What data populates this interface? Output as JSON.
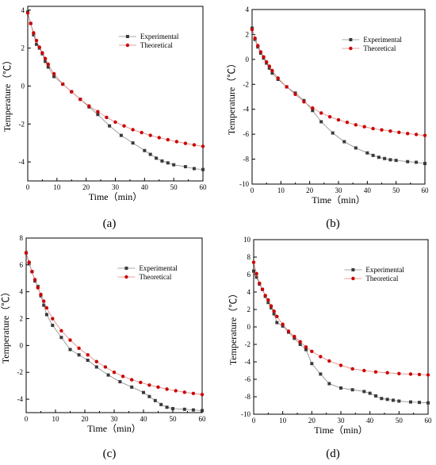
{
  "figure": {
    "legend_experimental": "Experimental",
    "legend_theoretical": "Theoretical",
    "colors": {
      "experimental": "#3a3a3a",
      "theoretical": "#cc0000",
      "axes": "#000000"
    }
  },
  "chart_data": [
    {
      "panel": "(a)",
      "type": "line",
      "xlabel": "Time（min）",
      "ylabel": "Temperature（℃）",
      "xlim": [
        0,
        60
      ],
      "ylim": [
        -5,
        4.2
      ],
      "xticks": [
        0,
        10,
        20,
        30,
        40,
        50,
        60
      ],
      "yticks": [
        -4,
        -2,
        0,
        2,
        4
      ],
      "legend_position": "top-right",
      "series": [
        {
          "name": "Experimental",
          "x": [
            0,
            1,
            2,
            3,
            4,
            5,
            6,
            7,
            9,
            12,
            15,
            18,
            21,
            24,
            28,
            32,
            36,
            40,
            42,
            44,
            46,
            48,
            50,
            54,
            57,
            60
          ],
          "y": [
            3.9,
            3.3,
            2.7,
            2.2,
            2.0,
            1.7,
            1.3,
            1.0,
            0.5,
            0.1,
            -0.3,
            -0.7,
            -1.1,
            -1.5,
            -2.1,
            -2.6,
            -3.0,
            -3.4,
            -3.6,
            -3.8,
            -3.95,
            -4.05,
            -4.15,
            -4.25,
            -4.35,
            -4.4
          ]
        },
        {
          "name": "Theoretical",
          "x": [
            0,
            1,
            2,
            3,
            4,
            5,
            6,
            7,
            9,
            12,
            15,
            18,
            21,
            24,
            27,
            30,
            33,
            36,
            39,
            42,
            45,
            48,
            51,
            54,
            57,
            60
          ],
          "y": [
            3.85,
            3.3,
            2.8,
            2.4,
            2.05,
            1.75,
            1.45,
            1.15,
            0.65,
            0.1,
            -0.3,
            -0.7,
            -1.05,
            -1.35,
            -1.65,
            -1.9,
            -2.1,
            -2.3,
            -2.45,
            -2.6,
            -2.72,
            -2.83,
            -2.93,
            -3.02,
            -3.1,
            -3.18
          ]
        }
      ]
    },
    {
      "panel": "(b)",
      "type": "line",
      "xlabel": "Time（min）",
      "ylabel": "Temperature（℃）",
      "xlim": [
        0,
        60
      ],
      "ylim": [
        -10,
        4
      ],
      "xticks": [
        0,
        10,
        20,
        30,
        40,
        50,
        60
      ],
      "yticks": [
        -10,
        -8,
        -6,
        -4,
        -2,
        0,
        2,
        4
      ],
      "legend_position": "top-right",
      "series": [
        {
          "name": "Experimental",
          "x": [
            0,
            1,
            2,
            3,
            4,
            5,
            6,
            7,
            9,
            12,
            15,
            18,
            21,
            24,
            28,
            32,
            36,
            40,
            42,
            44,
            46,
            48,
            50,
            54,
            57,
            60
          ],
          "y": [
            2.5,
            1.6,
            1.0,
            0.5,
            0.1,
            -0.3,
            -0.7,
            -1.1,
            -1.6,
            -2.2,
            -2.7,
            -3.3,
            -4.1,
            -5.0,
            -5.9,
            -6.6,
            -7.1,
            -7.5,
            -7.7,
            -7.85,
            -7.95,
            -8.05,
            -8.1,
            -8.2,
            -8.25,
            -8.35
          ]
        },
        {
          "name": "Theoretical",
          "x": [
            0,
            1,
            2,
            3,
            4,
            5,
            6,
            7,
            9,
            12,
            15,
            18,
            21,
            24,
            27,
            30,
            33,
            36,
            39,
            42,
            45,
            48,
            51,
            54,
            57,
            60
          ],
          "y": [
            2.4,
            1.7,
            1.1,
            0.6,
            0.2,
            -0.2,
            -0.55,
            -0.9,
            -1.5,
            -2.2,
            -2.8,
            -3.4,
            -3.9,
            -4.3,
            -4.6,
            -4.85,
            -5.05,
            -5.25,
            -5.4,
            -5.55,
            -5.65,
            -5.75,
            -5.85,
            -5.95,
            -6.02,
            -6.1
          ]
        }
      ]
    },
    {
      "panel": "(c)",
      "type": "line",
      "xlabel": "Time（min）",
      "ylabel": "Temperature（℃）",
      "xlim": [
        0,
        60
      ],
      "ylim": [
        -5,
        8
      ],
      "xticks": [
        0,
        10,
        20,
        30,
        40,
        50,
        60
      ],
      "yticks": [
        -4,
        -2,
        0,
        2,
        4,
        6,
        8
      ],
      "legend_position": "top-right",
      "series": [
        {
          "name": "Experimental",
          "x": [
            0,
            1,
            2,
            3,
            4,
            5,
            6,
            7,
            9,
            12,
            15,
            18,
            21,
            24,
            28,
            32,
            36,
            40,
            42,
            44,
            46,
            48,
            50,
            54,
            57,
            60
          ],
          "y": [
            6.9,
            6.1,
            5.5,
            4.8,
            4.4,
            3.7,
            3.0,
            2.3,
            1.5,
            0.6,
            -0.3,
            -0.7,
            -1.1,
            -1.6,
            -2.2,
            -2.7,
            -3.1,
            -3.5,
            -3.8,
            -4.1,
            -4.4,
            -4.6,
            -4.7,
            -4.75,
            -4.8,
            -4.85
          ]
        },
        {
          "name": "Theoretical",
          "x": [
            0,
            1,
            2,
            3,
            4,
            5,
            6,
            7,
            9,
            12,
            15,
            18,
            21,
            24,
            27,
            30,
            33,
            36,
            39,
            42,
            45,
            48,
            51,
            54,
            57,
            60
          ],
          "y": [
            6.9,
            6.2,
            5.5,
            4.9,
            4.3,
            3.8,
            3.3,
            2.8,
            2.0,
            1.1,
            0.4,
            -0.2,
            -0.7,
            -1.2,
            -1.6,
            -2.0,
            -2.3,
            -2.55,
            -2.75,
            -2.95,
            -3.1,
            -3.25,
            -3.37,
            -3.48,
            -3.57,
            -3.65
          ]
        }
      ]
    },
    {
      "panel": "(d)",
      "type": "line",
      "xlabel": "Time（min）",
      "ylabel": "Temperature（℃）",
      "xlim": [
        0,
        60
      ],
      "ylim": [
        -10,
        10
      ],
      "xticks": [
        0,
        10,
        20,
        30,
        40,
        50,
        60
      ],
      "yticks": [
        -10,
        -8,
        -6,
        -4,
        -2,
        0,
        2,
        4,
        6,
        8,
        10
      ],
      "legend_position": "top-right",
      "series": [
        {
          "name": "Experimental",
          "x": [
            0,
            1,
            2,
            3,
            4,
            5,
            6,
            7,
            8,
            10,
            12,
            14,
            16,
            18,
            20,
            23,
            26,
            30,
            34,
            38,
            40,
            42,
            44,
            46,
            48,
            50,
            54,
            57,
            60
          ],
          "y": [
            6.4,
            5.7,
            4.9,
            4.3,
            3.5,
            2.8,
            2.2,
            1.5,
            0.5,
            0.1,
            -0.6,
            -1.3,
            -2.0,
            -2.6,
            -4.2,
            -5.4,
            -6.5,
            -7.0,
            -7.2,
            -7.4,
            -7.6,
            -7.9,
            -8.2,
            -8.3,
            -8.4,
            -8.5,
            -8.6,
            -8.65,
            -8.7
          ]
        },
        {
          "name": "Theoretical",
          "x": [
            0,
            1,
            2,
            3,
            4,
            5,
            6,
            7,
            8,
            10,
            12,
            14,
            16,
            18,
            20,
            23,
            26,
            30,
            34,
            38,
            42,
            46,
            50,
            54,
            57,
            60
          ],
          "y": [
            7.4,
            6.1,
            5.0,
            4.3,
            3.6,
            3.1,
            2.4,
            1.8,
            1.2,
            0.3,
            -0.5,
            -1.1,
            -1.7,
            -2.3,
            -2.8,
            -3.4,
            -3.9,
            -4.4,
            -4.8,
            -5.0,
            -5.15,
            -5.25,
            -5.35,
            -5.4,
            -5.45,
            -5.5
          ]
        }
      ]
    }
  ]
}
